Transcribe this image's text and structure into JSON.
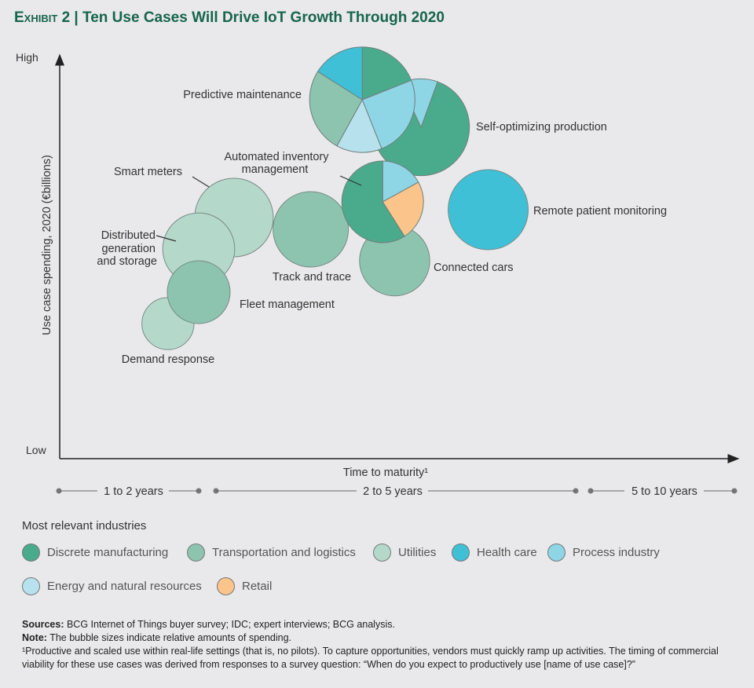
{
  "title": {
    "exhibit": "Exhibit 2",
    "separator": "|",
    "text": "Ten Use Cases Will Drive IoT Growth Through 2020"
  },
  "colors": {
    "discrete_manufacturing": "#4aaa8c",
    "transportation_logistics": "#8dc4b0",
    "utilities": "#b4d9cb",
    "health_care": "#3fc0d6",
    "process_industry": "#8ed5e6",
    "energy_resources": "#b7e2ed",
    "retail": "#fbc48a",
    "title": "#17654a",
    "background": "#e9e9eb"
  },
  "chart_data": {
    "type": "bubble",
    "title": "Ten Use Cases Will Drive IoT Growth Through 2020",
    "xlabel": "Time to maturity¹",
    "ylabel": "Use case spending, 2020 (€billions)",
    "y_tick_labels": {
      "low": "Low",
      "high": "High"
    },
    "x_bands": [
      {
        "label": "1 to 2 years",
        "from": 1,
        "to": 2
      },
      {
        "label": "2 to 5 years",
        "from": 2,
        "to": 5
      },
      {
        "label": "5 to 10 years",
        "from": 5,
        "to": 10
      }
    ],
    "y_scale": "relative (0 = Low, 100 = High)",
    "size_note": "relative spending",
    "grid": false,
    "legend_title": "Most relevant industries",
    "legend": [
      {
        "key": "discrete_manufacturing",
        "label": "Discrete manufacturing"
      },
      {
        "key": "transportation_logistics",
        "label": "Transportation and logistics"
      },
      {
        "key": "utilities",
        "label": "Utilities"
      },
      {
        "key": "health_care",
        "label": "Health care"
      },
      {
        "key": "process_industry",
        "label": "Process industry"
      },
      {
        "key": "energy_resources",
        "label": "Energy and natural resources"
      },
      {
        "key": "retail",
        "label": "Retail"
      }
    ],
    "bubbles": [
      {
        "label": "Self-optimizing production",
        "x": 3.71,
        "y": 82,
        "size": 38,
        "slices": [
          {
            "key": "discrete_manufacturing",
            "share": 0.875
          },
          {
            "key": "process_industry",
            "share": 0.125
          }
        ]
      },
      {
        "label": "Predictive maintenance",
        "x": 3.22,
        "y": 89,
        "size": 45,
        "slices": [
          {
            "key": "discrete_manufacturing",
            "share": 0.19
          },
          {
            "key": "process_industry",
            "share": 0.25
          },
          {
            "key": "energy_resources",
            "share": 0.14
          },
          {
            "key": "transportation_logistics",
            "share": 0.26
          },
          {
            "key": "health_care",
            "share": 0.16
          }
        ]
      },
      {
        "label": "Smart meters",
        "x": 2.15,
        "y": 59,
        "size": 25,
        "slices": [
          {
            "key": "utilities",
            "share": 1
          }
        ]
      },
      {
        "label": "Distributed generation and storage",
        "x": 2.0,
        "y": 51,
        "size": 21,
        "slices": [
          {
            "key": "utilities",
            "share": 1
          }
        ]
      },
      {
        "label": "Demand response",
        "x": 1.78,
        "y": 32,
        "size": 11,
        "slices": [
          {
            "key": "utilities",
            "share": 1
          }
        ]
      },
      {
        "label": "Fleet management",
        "x": 2.0,
        "y": 40,
        "size": 16,
        "slices": [
          {
            "key": "transportation_logistics",
            "share": 1
          }
        ]
      },
      {
        "label": "Track and trace",
        "x": 2.79,
        "y": 56,
        "size": 23,
        "slices": [
          {
            "key": "transportation_logistics",
            "share": 1
          }
        ]
      },
      {
        "label": "Connected cars",
        "x": 3.49,
        "y": 48,
        "size": 20,
        "slices": [
          {
            "key": "transportation_logistics",
            "share": 1
          }
        ]
      },
      {
        "label": "Automated inventory management",
        "x": 3.39,
        "y": 63,
        "size": 27,
        "slices": [
          {
            "key": "process_industry",
            "share": 0.17
          },
          {
            "key": "retail",
            "share": 0.24
          },
          {
            "key": "discrete_manufacturing",
            "share": 0.59
          }
        ]
      },
      {
        "label": "Remote patient monitoring",
        "x": 4.27,
        "y": 61,
        "size": 26,
        "slices": [
          {
            "key": "health_care",
            "share": 1
          }
        ]
      }
    ]
  },
  "labels": {
    "predictive": "Predictive maintenance",
    "self_opt": "Self-optimizing production",
    "inventory_1": "Automated inventory",
    "inventory_2": "management",
    "smart_meters": "Smart meters",
    "distributed_1": "Distributed",
    "distributed_2": "generation",
    "distributed_3": "and storage",
    "remote": "Remote patient monitoring",
    "track": "Track and trace",
    "connected": "Connected cars",
    "fleet": "Fleet management",
    "demand": "Demand response"
  },
  "footer": {
    "sources_label": "Sources:",
    "sources": " BCG Internet of Things buyer survey; IDC; expert interviews; BCG analysis.",
    "note_label": "Note:",
    "note": " The bubble sizes indicate relative amounts of spending.",
    "footnote": "¹Productive and scaled use within real-life settings (that is, no pilots). To capture opportunities, vendors must quickly ramp up activities. The timing of commercial viability for these use cases was derived from responses to a survey question: “When do you expect to productively use [name of use case]?”"
  }
}
